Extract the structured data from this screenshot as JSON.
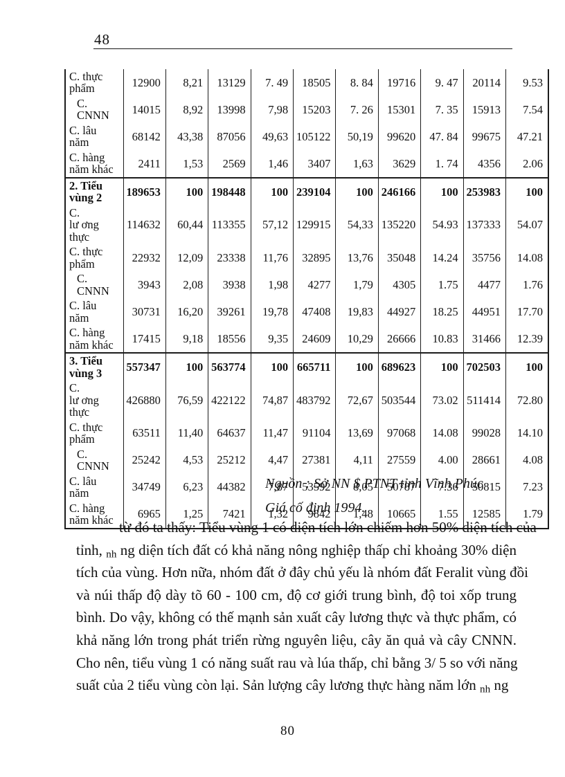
{
  "header": {
    "page_number": "48"
  },
  "footer": {
    "page_number": "80"
  },
  "table": {
    "rows": [
      {
        "label": "C. thực\nphẩm",
        "section": false,
        "indent": false,
        "cells": [
          "12900",
          "8,21",
          "13129",
          "7. 49",
          "18505",
          "8. 84",
          "19716",
          "9. 47",
          "20114",
          "9.53"
        ]
      },
      {
        "label": "C. CNNN",
        "section": false,
        "indent": true,
        "cells": [
          "14015",
          "8,92",
          "13998",
          "7,98",
          "15203",
          "7. 26",
          "15301",
          "7. 35",
          "15913",
          "7.54"
        ]
      },
      {
        "label": "C. lâu\nnăm",
        "section": false,
        "indent": false,
        "cells": [
          "68142",
          "43,38",
          "87056",
          "49,63",
          "105122",
          "50,19",
          "99620",
          "47. 84",
          "99675",
          "47.21"
        ]
      },
      {
        "label": "C. hàng\nnăm khác",
        "section": false,
        "indent": false,
        "cells": [
          "2411",
          "1,53",
          "2569",
          "1,46",
          "3407",
          "1,63",
          "3629",
          "1. 74",
          "4356",
          "2.06"
        ]
      },
      {
        "label": "2. Tiểu\nvùng 2",
        "section": true,
        "indent": false,
        "cells": [
          "189653",
          "100",
          "198448",
          "100",
          "239104",
          "100",
          "246166",
          "100",
          "253983",
          "100"
        ]
      },
      {
        "label": "C.\nlư ơng\nthực",
        "section": false,
        "indent": false,
        "cells": [
          "114632",
          "60,44",
          "113355",
          "57,12",
          "129915",
          "54,33",
          "135220",
          "54.93",
          "137333",
          "54.07"
        ]
      },
      {
        "label": "C. thực\nphẩm",
        "section": false,
        "indent": false,
        "cells": [
          "22932",
          "12,09",
          "23338",
          "11,76",
          "32895",
          "13,76",
          "35048",
          "14.24",
          "35756",
          "14.08"
        ]
      },
      {
        "label": "C. CNNN",
        "section": false,
        "indent": true,
        "cells": [
          "3943",
          "2,08",
          "3938",
          "1,98",
          "4277",
          "1,79",
          "4305",
          "1.75",
          "4477",
          "1.76"
        ]
      },
      {
        "label": "C. lâu\nnăm",
        "section": false,
        "indent": false,
        "cells": [
          "30731",
          "16,20",
          "39261",
          "19,78",
          "47408",
          "19,83",
          "44927",
          "18.25",
          "44951",
          "17.70"
        ]
      },
      {
        "label": "C. hàng\nnăm khác",
        "section": false,
        "indent": false,
        "cells": [
          "17415",
          "9,18",
          "18556",
          "9,35",
          "24609",
          "10,29",
          "26666",
          "10.83",
          "31466",
          "12.39"
        ]
      },
      {
        "label": "3. Tiểu\nvùng 3",
        "section": true,
        "indent": false,
        "cells": [
          "557347",
          "100",
          "563774",
          "100",
          "665711",
          "100",
          "689623",
          "100",
          "702503",
          "100"
        ]
      },
      {
        "label": "C.\nlư ơng\nthực",
        "section": false,
        "indent": false,
        "cells": [
          "426880",
          "76,59",
          "422122",
          "74,87",
          "483792",
          "72,67",
          "503544",
          "73.02",
          "511414",
          "72.80"
        ]
      },
      {
        "label": "C. thực\nphẩm",
        "section": false,
        "indent": false,
        "cells": [
          "63511",
          "11,40",
          "64637",
          "11,47",
          "91104",
          "13,69",
          "97068",
          "14.08",
          "99028",
          "14.10"
        ]
      },
      {
        "label": "C. CNNN",
        "section": false,
        "indent": true,
        "cells": [
          "25242",
          "4,53",
          "25212",
          "4,47",
          "27381",
          "4,11",
          "27559",
          "4.00",
          "28661",
          "4.08"
        ]
      },
      {
        "label": "C. lâu\nnăm",
        "section": false,
        "indent": false,
        "cells": [
          "34749",
          "6,23",
          "44382",
          "7,87",
          "53592",
          "8,05",
          "50787",
          "7.36",
          "50815",
          "7.23"
        ]
      },
      {
        "label": "C. hàng\nnăm khác",
        "section": false,
        "indent": false,
        "cells": [
          "6965",
          "1,25",
          "7421",
          "1,32",
          "9842",
          "1,48",
          "10665",
          "1.55",
          "12585",
          "1.79"
        ]
      }
    ]
  },
  "source": {
    "line1": "Nguồn : Sở NN $ PTNT tỉnh Vĩnh Phúc",
    "line2": "Giá cố định 1994."
  },
  "paragraph": {
    "line1": "từ đó ta thấy: Tiểu vùng 1 có diện tích lớn chiếm hơn 50% diện tích của",
    "line2": {
      "pre": "tỉnh, ",
      "sub": "nh",
      "post": " ng diện tích đất có khả năng nông nghiệp thấp chỉ khoảng 30% diện"
    },
    "line3": "tích của vùng. Hơn nữa, nhóm đất ở đây chủ yếu là nhóm đất Feralit vùng đồi",
    "line4": "và núi thấp độ dày tõ 60 - 100 cm, độ cơ giới trung bình, độ toi xốp trung",
    "line5": "bình. Do vậy, không có thế mạnh sản xuất cây lương thực và thực phẩm, có",
    "line6": "khả năng lớn trong phát triển rừng nguyên liệu, cây ăn quả và cây CNNN.",
    "line7": "Cho nên, tiểu vùng 1 có năng suất rau và lúa thấp, chỉ bằng 3/ 5 so với năng",
    "line8": {
      "pre": "suất của 2 tiểu vùng còn lại. Sản lượng cây lương thực hàng năm lớn ",
      "sub": "nh",
      "post": " ng"
    }
  }
}
